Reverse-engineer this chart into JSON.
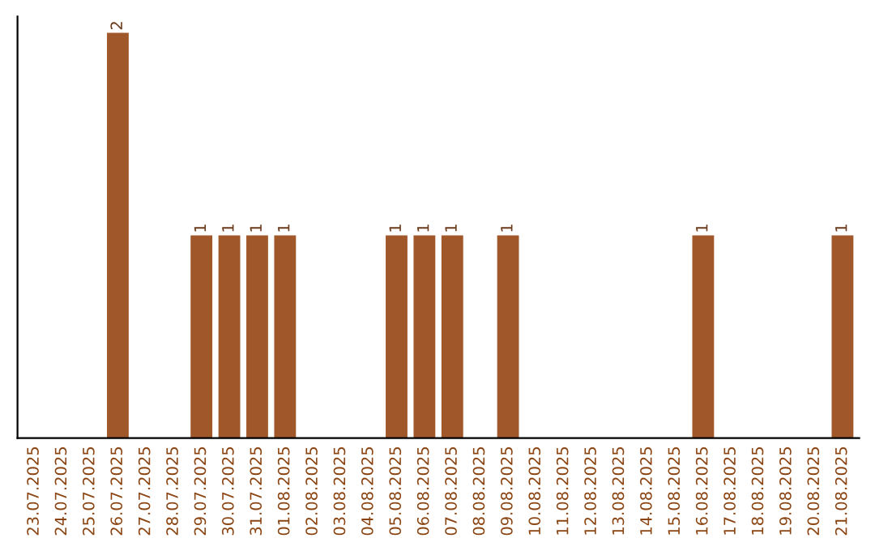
{
  "chart_data": {
    "type": "bar",
    "categories": [
      "23.07.2025",
      "24.07.2025",
      "25.07.2025",
      "26.07.2025",
      "27.07.2025",
      "28.07.2025",
      "29.07.2025",
      "30.07.2025",
      "31.07.2025",
      "01.08.2025",
      "02.08.2025",
      "03.08.2025",
      "04.08.2025",
      "05.08.2025",
      "06.08.2025",
      "07.08.2025",
      "08.08.2025",
      "09.08.2025",
      "10.08.2025",
      "11.08.2025",
      "12.08.2025",
      "13.08.2025",
      "14.08.2025",
      "15.08.2025",
      "16.08.2025",
      "17.08.2025",
      "18.08.2025",
      "19.08.2025",
      "20.08.2025",
      "21.08.2025"
    ],
    "values": [
      0,
      0,
      0,
      2,
      0,
      0,
      1,
      1,
      1,
      1,
      0,
      0,
      0,
      1,
      1,
      1,
      0,
      1,
      0,
      0,
      0,
      0,
      0,
      0,
      1,
      0,
      0,
      0,
      0,
      1
    ],
    "value_labels": [
      null,
      null,
      null,
      "2",
      null,
      null,
      "1",
      "1",
      "1",
      "1",
      null,
      null,
      null,
      "1",
      "1",
      "1",
      null,
      "1",
      null,
      null,
      null,
      null,
      null,
      null,
      "1",
      null,
      null,
      null,
      null,
      "1"
    ],
    "color": "#a0582a",
    "ylim": [
      0,
      2.08
    ],
    "tick_labels": "x",
    "grid": false,
    "legend": false
  }
}
